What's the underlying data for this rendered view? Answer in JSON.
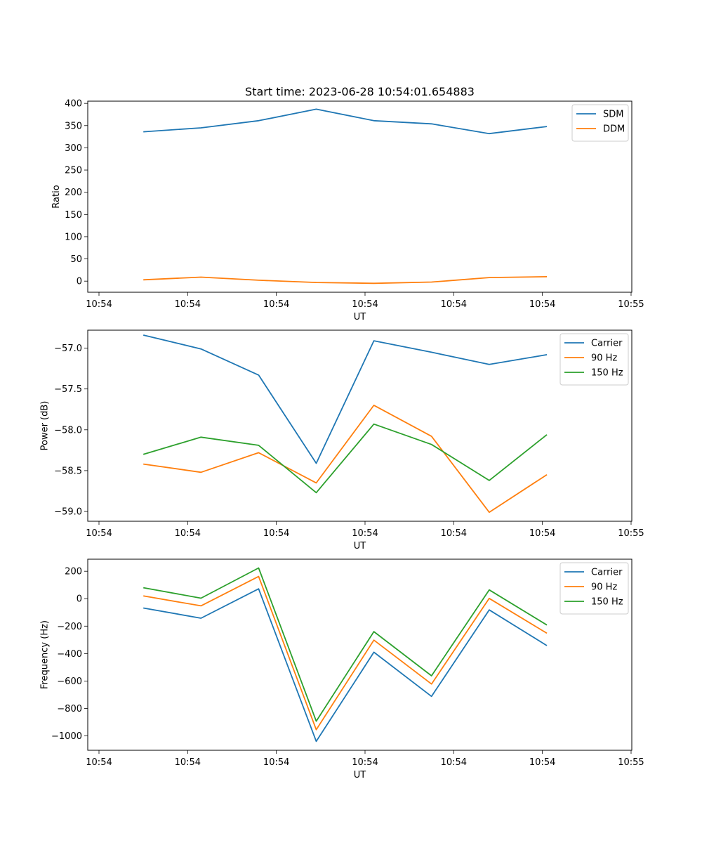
{
  "figure": {
    "title": "Start time: 2023-06-28 10:54:01.654883"
  },
  "chart_data": [
    {
      "type": "line",
      "title": "Start time: 2023-06-28 10:54:01.654883",
      "xlabel": "UT",
      "ylabel": "Ratio",
      "xticks": [
        "10:54",
        "10:54",
        "10:54",
        "10:54",
        "10:54",
        "10:54",
        "10:55"
      ],
      "xlim": [
        0,
        6
      ],
      "x": [
        0.5,
        1.15,
        1.8,
        2.45,
        3.1,
        3.75,
        4.4,
        5.05
      ],
      "ylim": [
        -25,
        405
      ],
      "yticks": [
        0,
        50,
        100,
        150,
        200,
        250,
        300,
        350,
        400
      ],
      "legend": "top-right",
      "grid": false,
      "series": [
        {
          "name": "SDM",
          "color": "#1f77b4",
          "values": [
            336,
            345,
            361,
            387,
            361,
            354,
            332,
            348
          ]
        },
        {
          "name": "DDM",
          "color": "#ff7f0e",
          "values": [
            3,
            9,
            2,
            -3,
            -5,
            -2,
            8,
            10
          ]
        }
      ]
    },
    {
      "type": "line",
      "xlabel": "UT",
      "ylabel": "Power (dB)",
      "xticks": [
        "10:54",
        "10:54",
        "10:54",
        "10:54",
        "10:54",
        "10:54",
        "10:55"
      ],
      "xlim": [
        0,
        6
      ],
      "x": [
        0.5,
        1.15,
        1.8,
        2.45,
        3.1,
        3.75,
        4.4,
        5.05
      ],
      "ylim": [
        -59.12,
        -56.78
      ],
      "yticks": [
        -59.0,
        -58.5,
        -58.0,
        -57.5,
        -57.0
      ],
      "ytick_labels": [
        "−59.0",
        "−58.5",
        "−58.0",
        "−57.5",
        "−57.0"
      ],
      "legend": "top-right",
      "grid": false,
      "series": [
        {
          "name": "Carrier",
          "color": "#1f77b4",
          "values": [
            -56.84,
            -57.01,
            -57.33,
            -58.41,
            -56.91,
            -57.05,
            -57.2,
            -57.08
          ]
        },
        {
          "name": "90 Hz",
          "color": "#ff7f0e",
          "values": [
            -58.42,
            -58.52,
            -58.28,
            -58.65,
            -57.7,
            -58.08,
            -59.01,
            -58.55
          ]
        },
        {
          "name": "150 Hz",
          "color": "#2ca02c",
          "values": [
            -58.3,
            -58.09,
            -58.19,
            -58.77,
            -57.93,
            -58.18,
            -58.62,
            -58.06
          ]
        }
      ]
    },
    {
      "type": "line",
      "xlabel": "UT",
      "ylabel": "Frequency (Hz)",
      "xticks": [
        "10:54",
        "10:54",
        "10:54",
        "10:54",
        "10:54",
        "10:54",
        "10:55"
      ],
      "xlim": [
        0,
        6
      ],
      "x": [
        0.5,
        1.15,
        1.8,
        2.45,
        3.1,
        3.75,
        4.4,
        5.05
      ],
      "ylim": [
        -1105,
        288
      ],
      "yticks": [
        -1000,
        -800,
        -600,
        -400,
        -200,
        0,
        200
      ],
      "ytick_labels": [
        "−1000",
        "−800",
        "−600",
        "−400",
        "−200",
        "0",
        "200"
      ],
      "legend": "top-right",
      "grid": false,
      "series": [
        {
          "name": "Carrier",
          "color": "#1f77b4",
          "values": [
            -68,
            -142,
            72,
            -1040,
            -390,
            -712,
            -82,
            -342
          ]
        },
        {
          "name": "90 Hz",
          "color": "#ff7f0e",
          "values": [
            20,
            -52,
            162,
            -955,
            -302,
            -622,
            2,
            -252
          ]
        },
        {
          "name": "150 Hz",
          "color": "#2ca02c",
          "values": [
            80,
            4,
            224,
            -893,
            -240,
            -562,
            64,
            -192
          ]
        }
      ]
    }
  ]
}
